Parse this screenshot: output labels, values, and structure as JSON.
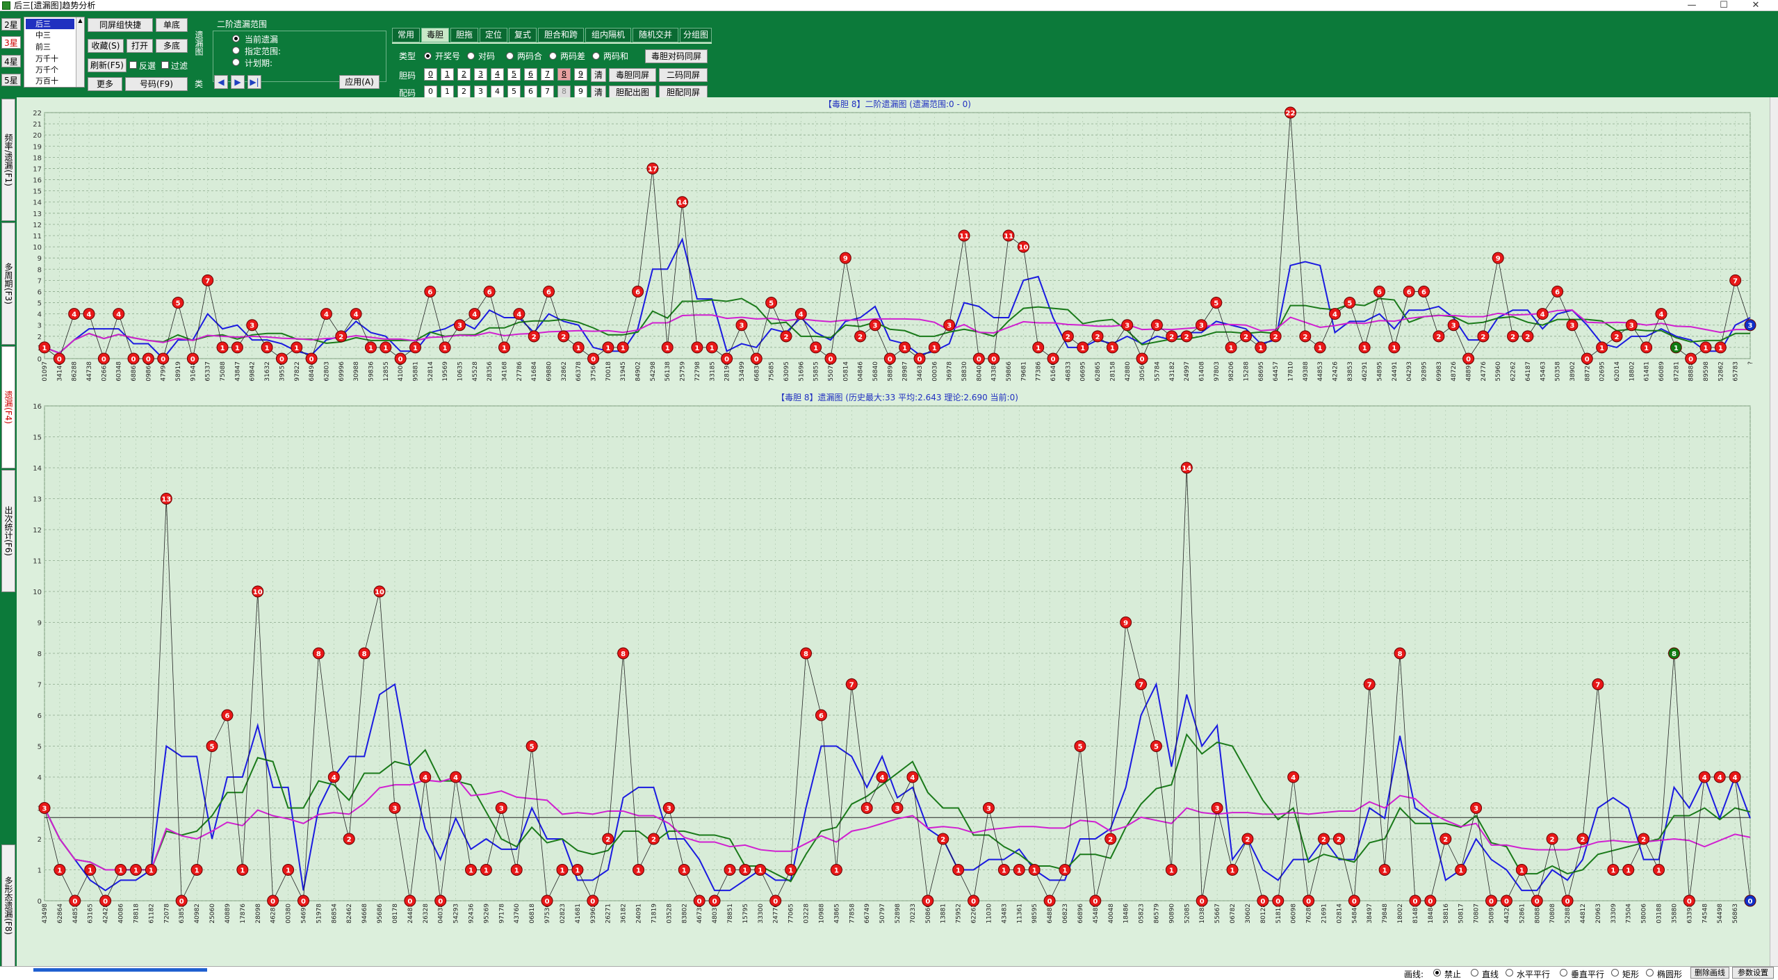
{
  "window": {
    "title": "后三[遗漏图]趋势分析",
    "minimize": "—",
    "maximize": "☐",
    "close": "✕"
  },
  "toolbar": {
    "star_tabs": [
      "2星",
      "3星",
      "4星",
      "5星"
    ],
    "position_list": [
      "后三",
      "中三",
      "前三",
      "万千十",
      "万千个",
      "万百十"
    ],
    "combo_label": "同屏组快捷",
    "single_bottom": "单底",
    "favorites": "收藏(S)",
    "open": "打开",
    "multi_bottom": "多底",
    "refresh": "刷新(F5)",
    "reverse": "反選",
    "filter": "过滤",
    "more": "更多",
    "number_btn": "号码(F9)",
    "range_title": "二阶遗漏范围",
    "range_options": [
      "当前遗漏",
      "指定范围:",
      "计划期:"
    ],
    "range_side_a": "遗漏图",
    "range_side_b": "类",
    "apply": "应用(A)",
    "func_tabs": [
      "常用",
      "毒胆",
      "胆拖",
      "定位",
      "复式",
      "胆合和跨",
      "组内隔机",
      "随机交并",
      "分组图"
    ],
    "type_label": "类型",
    "type_options": [
      "开奖号",
      "对码",
      "两码合",
      "两码差",
      "两码和"
    ],
    "dan_label": "胆码",
    "pei_label": "配码",
    "digits": [
      "0",
      "1",
      "2",
      "3",
      "4",
      "5",
      "6",
      "7",
      "8",
      "9"
    ],
    "clear": "清",
    "btn_dan_same": "毒胆同屏",
    "btn_dan_duima": "毒胆对码同屏",
    "btn_erma": "二码同屏",
    "btn_danpei": "胆配出图",
    "btn_danpei_same": "胆配同屏"
  },
  "sidebar": {
    "tabs": [
      "频率/遗漏(F1)",
      "多周期(F3)",
      "遗漏(F4)",
      "出次统计(F6)",
      "多形态遗漏(F8)"
    ]
  },
  "chart1": {
    "title": "【毒胆 8】二阶遗漏图 (遗漏范围:0 - 0)",
    "ymax": 22
  },
  "chart2": {
    "title": "【毒胆 8】遗漏图 (历史最大:33 平均:2.643 理论:2.690 当前:0)",
    "ymax": 16,
    "ref_line": 2.69
  },
  "statusbar": {
    "draw_label": "画线:",
    "draw_options": [
      "禁止",
      "直线",
      "水平平行",
      "垂直平行",
      "矩形",
      "椭圆形"
    ],
    "delete_lines": "删除画线",
    "settings": "参数设置"
  },
  "chart_data": [
    {
      "type": "line",
      "title": "【毒胆 8】二阶遗漏图 (遗漏范围:0 - 0)",
      "ylim": [
        0,
        22
      ],
      "x": [
        "01097",
        "34146",
        "86288",
        "44738",
        "02663",
        "60348",
        "68861",
        "09860",
        "47994",
        "58919",
        "91648",
        "65337",
        "75088",
        "43847",
        "69842",
        "31632",
        "39559",
        "97822",
        "68494",
        "62803",
        "69996",
        "30988",
        "59836",
        "12855",
        "41000",
        "95881",
        "52814",
        "19569",
        "10635",
        "45528",
        "28356",
        "34168",
        "27786",
        "41684",
        "69880",
        "32862",
        "66378",
        "37560",
        "70018",
        "31945",
        "84902",
        "54298",
        "56138",
        "25759",
        "72798",
        "33185",
        "28198",
        "53499",
        "66830",
        "75685",
        "63095",
        "51696",
        "55855",
        "55079",
        "05814",
        "04846",
        "56840",
        "58890",
        "28987",
        "34631",
        "00036",
        "36978",
        "58830",
        "80408",
        "43388",
        "59866",
        "79681",
        "77386",
        "61640",
        "46833",
        "06695",
        "62865",
        "28158",
        "42880",
        "30566",
        "55784",
        "43182",
        "24997",
        "61408",
        "97803",
        "98206",
        "15288",
        "68695",
        "64457",
        "17810",
        "49388",
        "44853",
        "42426",
        "83853",
        "46291",
        "54895",
        "24491",
        "04293",
        "92895",
        "69983",
        "48726",
        "48897",
        "24776",
        "55960",
        "62262",
        "64187",
        "45463",
        "50358",
        "38902",
        "88726",
        "02695",
        "62014",
        "18802",
        "61481",
        "66089",
        "87281",
        "88888",
        "89598",
        "52862",
        "65783",
        "?"
      ],
      "series": [
        {
          "values": [
            1,
            0,
            4,
            4,
            0,
            4,
            0,
            0,
            0,
            5,
            0,
            7,
            1,
            1,
            3,
            1,
            0,
            1,
            0,
            4,
            2,
            4,
            1,
            1,
            0,
            1,
            6,
            1,
            3,
            4,
            6,
            1,
            4,
            2,
            6,
            2,
            1,
            0,
            1,
            1,
            6,
            17,
            1,
            14,
            1,
            1,
            0,
            3,
            0,
            5,
            2,
            4,
            1,
            0,
            9,
            2,
            3,
            0,
            1,
            0,
            1,
            3,
            11,
            0,
            0,
            11,
            10,
            1,
            0,
            2,
            1,
            2,
            1,
            3,
            0,
            3,
            2,
            2,
            3,
            5,
            1,
            2,
            1,
            2,
            22,
            2,
            1,
            4,
            5,
            1,
            6,
            1,
            6,
            6,
            2,
            3,
            0,
            2,
            9,
            2,
            2,
            4,
            6,
            3,
            0,
            1,
            2,
            3,
            1,
            4,
            1,
            0,
            1,
            1,
            7,
            3
          ]
        }
      ]
    },
    {
      "type": "line",
      "title": "【毒胆 8】遗漏图 (历史最大:33 平均:2.643 理论:2.690 当前:0)",
      "ylim": [
        0,
        16
      ],
      "x": [
        "43498",
        "62864",
        "44853",
        "63165",
        "42428",
        "40086",
        "78818",
        "61182",
        "72078",
        "63853",
        "40982",
        "25060",
        "40889",
        "17876",
        "28098",
        "46281",
        "00380",
        "54695",
        "51978",
        "86854",
        "82462",
        "94668",
        "95686",
        "08178",
        "24481",
        "26328",
        "04038",
        "54293",
        "92436",
        "95269",
        "97178",
        "43760",
        "06818",
        "97536",
        "02823",
        "41681",
        "93962",
        "26271",
        "36182",
        "24091",
        "71819",
        "03528",
        "83802",
        "46738",
        "48037",
        "78851",
        "15795",
        "33300",
        "24776",
        "77065",
        "03228",
        "10988",
        "43865",
        "77858",
        "66749",
        "50797",
        "52898",
        "70233",
        "50860",
        "13881",
        "75952",
        "62262",
        "11030",
        "43483",
        "11361",
        "98595",
        "64887",
        "06823",
        "66896",
        "45485",
        "40048",
        "18486",
        "05823",
        "86579",
        "90890",
        "52085",
        "10383",
        "55667",
        "06782",
        "30602",
        "80128",
        "51813",
        "06098",
        "76289",
        "21691",
        "02814",
        "54846",
        "38497",
        "79848",
        "18002",
        "81481",
        "18484",
        "58816",
        "50817",
        "70807",
        "50891",
        "44328",
        "52861",
        "80888",
        "70808",
        "52882",
        "44812",
        "20963",
        "33309",
        "73504",
        "58006",
        "03188",
        "35880",
        "63393",
        "74548",
        "54498",
        "56863",
        "?"
      ],
      "series": [
        {
          "values": [
            3,
            1,
            0,
            1,
            0,
            1,
            1,
            1,
            13,
            0,
            1,
            5,
            6,
            1,
            10,
            0,
            1,
            0,
            8,
            4,
            2,
            8,
            10,
            3,
            0,
            4,
            0,
            4,
            1,
            1,
            3,
            1,
            5,
            0,
            1,
            1,
            0,
            2,
            8,
            1,
            2,
            3,
            1,
            0,
            0,
            1,
            1,
            1,
            0,
            1,
            8,
            6,
            1,
            7,
            3,
            4,
            3,
            4,
            0,
            2,
            1,
            0,
            3,
            1,
            1,
            1,
            0,
            1,
            5,
            0,
            2,
            9,
            7,
            5,
            1,
            14,
            0,
            3,
            1,
            2,
            0,
            0,
            4,
            0,
            2,
            2,
            0,
            7,
            1,
            8,
            0,
            0,
            2,
            1,
            3,
            0,
            0,
            1,
            0,
            2,
            0,
            2,
            7,
            1,
            1,
            2,
            1,
            8,
            0,
            4,
            4,
            4,
            0
          ]
        }
      ]
    }
  ]
}
